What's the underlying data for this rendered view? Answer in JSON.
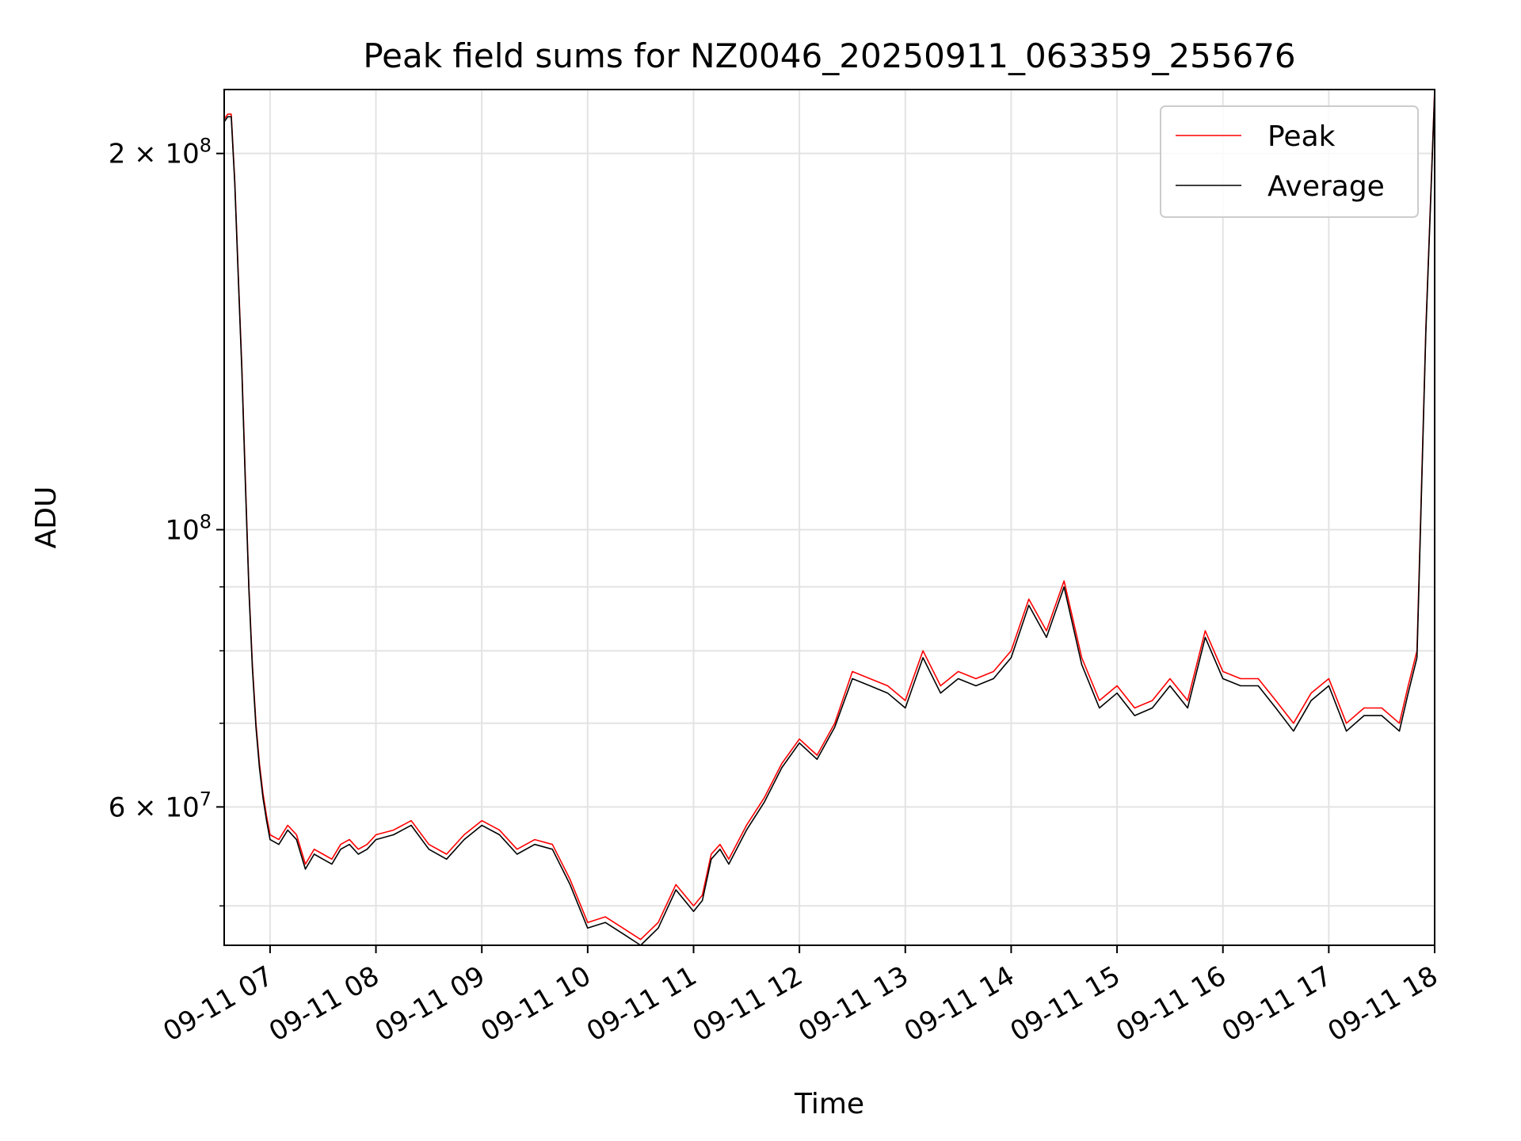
{
  "chart_data": {
    "type": "line",
    "title": "Peak field sums for NZ0046_20250911_063359_255676",
    "xlabel": "Time",
    "ylabel": "ADU",
    "y_scale": "log",
    "xlim": [
      "2025-09-11 06:34",
      "2025-09-11 18:00"
    ],
    "ylim": [
      46500000,
      225000000
    ],
    "grid": true,
    "legend_position": "top-right",
    "x_ticks": [
      "09-11 07",
      "09-11 08",
      "09-11 09",
      "09-11 10",
      "09-11 11",
      "09-11 12",
      "09-11 13",
      "09-11 14",
      "09-11 15",
      "09-11 16",
      "09-11 17",
      "09-11 18"
    ],
    "y_major_ticks": [
      {
        "value": 200000000,
        "label": "2 × 10^8"
      },
      {
        "value": 100000000,
        "label": "10^8"
      },
      {
        "value": 60000000,
        "label": "6 × 10^7"
      }
    ],
    "y_minor_ticks": [
      50000000,
      70000000,
      80000000,
      90000000
    ],
    "x": [
      "06:34",
      "06:36",
      "06:38",
      "06:40",
      "06:42",
      "06:44",
      "06:46",
      "06:48",
      "06:50",
      "06:52",
      "06:54",
      "06:56",
      "06:58",
      "07:00",
      "07:05",
      "07:10",
      "07:15",
      "07:20",
      "07:25",
      "07:30",
      "07:35",
      "07:40",
      "07:45",
      "07:50",
      "07:55",
      "08:00",
      "08:10",
      "08:20",
      "08:30",
      "08:40",
      "08:50",
      "09:00",
      "09:10",
      "09:20",
      "09:30",
      "09:40",
      "09:50",
      "10:00",
      "10:10",
      "10:20",
      "10:30",
      "10:40",
      "10:50",
      "11:00",
      "11:05",
      "11:10",
      "11:15",
      "11:20",
      "11:30",
      "11:40",
      "11:50",
      "12:00",
      "12:10",
      "12:20",
      "12:30",
      "12:40",
      "12:50",
      "13:00",
      "13:10",
      "13:20",
      "13:30",
      "13:40",
      "13:50",
      "14:00",
      "14:10",
      "14:20",
      "14:30",
      "14:40",
      "14:50",
      "15:00",
      "15:10",
      "15:20",
      "15:30",
      "15:40",
      "15:50",
      "16:00",
      "16:10",
      "16:20",
      "16:30",
      "16:40",
      "16:50",
      "17:00",
      "17:10",
      "17:20",
      "17:30",
      "17:40",
      "17:45",
      "17:50",
      "17:55",
      "18:00"
    ],
    "series": [
      {
        "name": "Peak",
        "color": "#ff0000",
        "values": [
          213000000,
          215000000,
          215000000,
          190000000,
          160000000,
          135000000,
          110000000,
          90000000,
          78000000,
          70000000,
          65000000,
          61500000,
          59000000,
          57000000,
          56500000,
          58000000,
          57000000,
          54000000,
          55500000,
          55000000,
          54500000,
          56000000,
          56500000,
          55500000,
          56000000,
          57000000,
          57500000,
          58500000,
          56000000,
          55000000,
          57000000,
          58500000,
          57500000,
          55500000,
          56500000,
          56000000,
          52500000,
          48500000,
          49000000,
          48000000,
          47000000,
          48500000,
          52000000,
          50000000,
          51000000,
          55000000,
          56000000,
          54500000,
          58000000,
          61000000,
          65000000,
          68000000,
          66000000,
          70000000,
          77000000,
          76000000,
          75000000,
          73000000,
          80000000,
          75000000,
          77000000,
          76000000,
          77000000,
          80000000,
          88000000,
          83000000,
          91000000,
          79000000,
          73000000,
          75000000,
          72000000,
          73000000,
          76000000,
          73000000,
          83000000,
          77000000,
          76000000,
          76000000,
          73000000,
          70000000,
          74000000,
          76000000,
          70000000,
          72000000,
          72000000,
          70000000,
          75000000,
          80000000,
          145000000,
          225000000
        ]
      },
      {
        "name": "Average",
        "color": "#000000",
        "values": [
          212000000,
          214000000,
          214000000,
          189000000,
          159000000,
          134000000,
          109000000,
          89500000,
          77500000,
          69500000,
          64500000,
          61000000,
          58500000,
          56500000,
          56000000,
          57500000,
          56500000,
          53500000,
          55000000,
          54500000,
          54000000,
          55500000,
          56000000,
          55000000,
          55500000,
          56500000,
          57000000,
          58000000,
          55500000,
          54500000,
          56500000,
          58000000,
          57000000,
          55000000,
          56000000,
          55500000,
          52000000,
          48000000,
          48500000,
          47500000,
          46500000,
          48000000,
          51500000,
          49500000,
          50500000,
          54500000,
          55500000,
          54000000,
          57500000,
          60500000,
          64500000,
          67500000,
          65500000,
          69500000,
          76000000,
          75000000,
          74000000,
          72000000,
          79000000,
          74000000,
          76000000,
          75000000,
          76000000,
          79000000,
          87000000,
          82000000,
          90000000,
          78000000,
          72000000,
          74000000,
          71000000,
          72000000,
          75000000,
          72000000,
          82000000,
          76000000,
          75000000,
          75000000,
          72000000,
          69000000,
          73000000,
          75000000,
          69000000,
          71000000,
          71000000,
          69000000,
          74000000,
          79000000,
          144000000,
          224000000
        ]
      }
    ]
  }
}
